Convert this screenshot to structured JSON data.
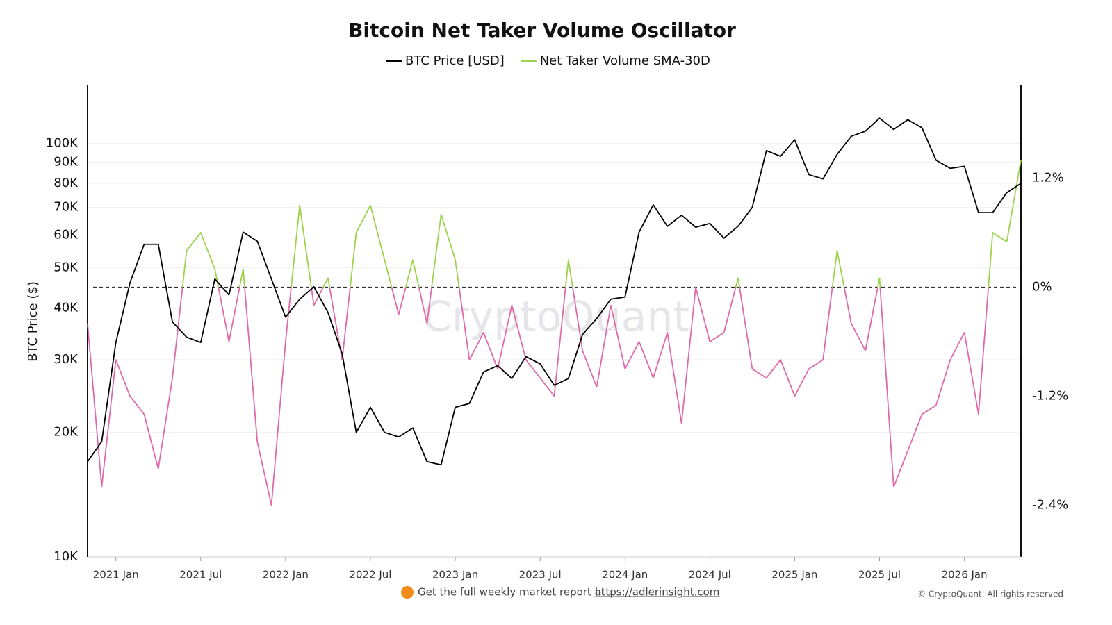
{
  "chart_data": {
    "type": "line",
    "title": "Bitcoin Net Taker Volume Oscillator",
    "y_label": "BTC Price ($)",
    "watermark": "CryptoQuant",
    "footer_text": "Get the full weekly market report at",
    "footer_link": "https://adlerinsight.com",
    "copyright": "© CryptoQuant. All rights reserved",
    "x": [
      "2020-11",
      "2020-12",
      "2021-01",
      "2021-02",
      "2021-03",
      "2021-04",
      "2021-05",
      "2021-06",
      "2021-07",
      "2021-08",
      "2021-09",
      "2021-10",
      "2021-11",
      "2021-12",
      "2022-01",
      "2022-02",
      "2022-03",
      "2022-04",
      "2022-05",
      "2022-06",
      "2022-07",
      "2022-08",
      "2022-09",
      "2022-10",
      "2022-11",
      "2022-12",
      "2023-01",
      "2023-02",
      "2023-03",
      "2023-04",
      "2023-05",
      "2023-06",
      "2023-07",
      "2023-08",
      "2023-09",
      "2023-10",
      "2023-11",
      "2023-12",
      "2024-01",
      "2024-02",
      "2024-03",
      "2024-04",
      "2024-05",
      "2024-06",
      "2024-07",
      "2024-08",
      "2024-09",
      "2024-10",
      "2024-11",
      "2024-12",
      "2025-01",
      "2025-02",
      "2025-03",
      "2025-04",
      "2025-05",
      "2025-06",
      "2025-07",
      "2025-08",
      "2025-09",
      "2025-10",
      "2025-11",
      "2025-12",
      "2026-01",
      "2026-02",
      "2026-03",
      "2026-04",
      "2026-05"
    ],
    "series": [
      {
        "name": "BTC Price [USD]",
        "color": "#000000",
        "values": [
          17000,
          19000,
          33000,
          46000,
          57000,
          57000,
          37000,
          34000,
          33000,
          47000,
          43000,
          61000,
          58000,
          47000,
          38000,
          42000,
          45000,
          39000,
          31000,
          20000,
          23000,
          20000,
          19500,
          20500,
          17000,
          16700,
          23000,
          23500,
          28000,
          29000,
          27000,
          30500,
          29300,
          26000,
          27000,
          34500,
          37700,
          42000,
          42500,
          61000,
          71000,
          63000,
          67000,
          62700,
          64000,
          59000,
          63000,
          70000,
          96000,
          93000,
          102000,
          84000,
          82000,
          94000,
          104000,
          107000,
          115000,
          108000,
          114000,
          109000,
          91000,
          87000,
          88000,
          68000,
          68000,
          76000,
          80000
        ]
      },
      {
        "name": "Net Taker Volume SMA-30D",
        "color": "#9ed24b",
        "negative_color": "#e06aa8",
        "axis": "y2",
        "values": [
          -0.4,
          -2.2,
          -0.8,
          -1.2,
          -1.4,
          -2.0,
          -1.0,
          0.4,
          0.6,
          0.2,
          -0.6,
          0.2,
          -1.7,
          -2.4,
          -0.6,
          0.9,
          -0.2,
          0.1,
          -0.8,
          0.6,
          0.9,
          0.3,
          -0.3,
          0.3,
          -0.4,
          0.8,
          0.3,
          -0.8,
          -0.5,
          -0.9,
          -0.2,
          -0.8,
          -1.0,
          -1.2,
          0.3,
          -0.7,
          -1.1,
          -0.2,
          -0.9,
          -0.6,
          -1.0,
          -0.5,
          -1.5,
          0.0,
          -0.6,
          -0.5,
          0.1,
          -0.9,
          -1.0,
          -0.8,
          -1.2,
          -0.9,
          -0.8,
          0.4,
          -0.4,
          -0.7,
          0.1,
          -2.2,
          -1.8,
          -1.4,
          -1.3,
          -0.8,
          -0.5,
          -1.4,
          0.6,
          0.5,
          1.4
        ]
      }
    ],
    "xlim": [
      "2020-11",
      "2026-05"
    ],
    "xticks": [
      {
        "value": "2021-01",
        "label": "2021 Jan"
      },
      {
        "value": "2021-07",
        "label": "2021 Jul"
      },
      {
        "value": "2022-01",
        "label": "2022 Jan"
      },
      {
        "value": "2022-07",
        "label": "2022 Jul"
      },
      {
        "value": "2023-01",
        "label": "2023 Jan"
      },
      {
        "value": "2023-07",
        "label": "2023 Jul"
      },
      {
        "value": "2024-01",
        "label": "2024 Jan"
      },
      {
        "value": "2024-07",
        "label": "2024 Jul"
      },
      {
        "value": "2025-01",
        "label": "2025 Jan"
      },
      {
        "value": "2025-07",
        "label": "2025 Jul"
      },
      {
        "value": "2026-01",
        "label": "2026 Jan"
      }
    ],
    "log_y": true,
    "ylim": [
      10000,
      138000
    ],
    "yticks": [
      {
        "value": 10000,
        "label": "10K"
      },
      {
        "value": 20000,
        "label": "20K"
      },
      {
        "value": 30000,
        "label": "30K"
      },
      {
        "value": 40000,
        "label": "40K"
      },
      {
        "value": 50000,
        "label": "50K"
      },
      {
        "value": 60000,
        "label": "60K"
      },
      {
        "value": 70000,
        "label": "70K"
      },
      {
        "value": 80000,
        "label": "80K"
      },
      {
        "value": 90000,
        "label": "90K"
      },
      {
        "value": 100000,
        "label": "100K"
      }
    ],
    "y2lim": [
      -2.97,
      2.22
    ],
    "y2ticks": [
      {
        "value": -2.4,
        "label": "-2.4%"
      },
      {
        "value": -1.2,
        "label": "-1.2%"
      },
      {
        "value": 0,
        "label": "0%"
      },
      {
        "value": 1.2,
        "label": "1.2%"
      }
    ],
    "zero_line": true,
    "grid": true,
    "legend": "top"
  }
}
